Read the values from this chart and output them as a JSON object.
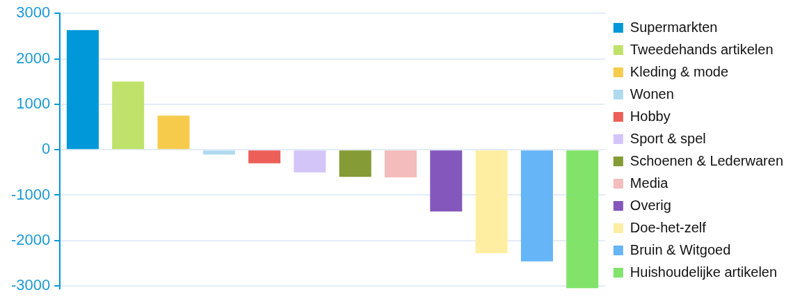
{
  "chart_data": {
    "type": "bar",
    "categories": [
      null,
      null,
      null,
      null,
      null,
      null,
      null,
      null,
      null,
      null,
      null,
      null
    ],
    "series": [
      {
        "name": "Supermarkten",
        "color": "#0098d8",
        "values": [
          2630,
          null,
          null,
          null,
          null,
          null,
          null,
          null,
          null,
          null,
          null,
          null
        ]
      },
      {
        "name": "Tweedehands artikelen",
        "color": "#c0e26a",
        "values": [
          null,
          1500,
          null,
          null,
          null,
          null,
          null,
          null,
          null,
          null,
          null,
          null
        ]
      },
      {
        "name": "Kleding & mode",
        "color": "#f6cb4c",
        "values": [
          null,
          null,
          750,
          null,
          null,
          null,
          null,
          null,
          null,
          null,
          null,
          null
        ]
      },
      {
        "name": "Wonen",
        "color": "#b0daf0",
        "values": [
          null,
          null,
          null,
          -110,
          null,
          null,
          null,
          null,
          null,
          null,
          null,
          null
        ]
      },
      {
        "name": "Hobby",
        "color": "#ec5f59",
        "values": [
          null,
          null,
          null,
          null,
          -300,
          null,
          null,
          null,
          null,
          null,
          null,
          null
        ]
      },
      {
        "name": "Sport & spel",
        "color": "#d4c5f9",
        "values": [
          null,
          null,
          null,
          null,
          null,
          -500,
          null,
          null,
          null,
          null,
          null,
          null
        ]
      },
      {
        "name": "Schoenen & Lederwaren",
        "color": "#859b35",
        "values": [
          null,
          null,
          null,
          null,
          null,
          null,
          -600,
          null,
          null,
          null,
          null,
          null
        ]
      },
      {
        "name": "Media",
        "color": "#f4bcbc",
        "values": [
          null,
          null,
          null,
          null,
          null,
          null,
          null,
          -610,
          null,
          null,
          null,
          null
        ]
      },
      {
        "name": "Overig",
        "color": "#8457bd",
        "values": [
          null,
          null,
          null,
          null,
          null,
          null,
          null,
          null,
          -1360,
          null,
          null,
          null
        ]
      },
      {
        "name": "Doe-het-zelf",
        "color": "#fdeea2",
        "values": [
          null,
          null,
          null,
          null,
          null,
          null,
          null,
          null,
          null,
          -2280,
          null,
          null
        ]
      },
      {
        "name": "Bruin & Witgoed",
        "color": "#66b5f7",
        "values": [
          null,
          null,
          null,
          null,
          null,
          null,
          null,
          null,
          null,
          null,
          -2460,
          null
        ]
      },
      {
        "name": "Huishoudelijke artikelen",
        "color": "#82e36a",
        "values": [
          null,
          null,
          null,
          null,
          null,
          null,
          null,
          null,
          null,
          null,
          null,
          -3050
        ]
      }
    ],
    "ylim": [
      -3060,
      3000
    ],
    "yticks": [
      -3000,
      -2000,
      -1000,
      0,
      1000,
      2000,
      3000
    ],
    "grid": "y",
    "legend": "right",
    "tick_labels": "y"
  }
}
